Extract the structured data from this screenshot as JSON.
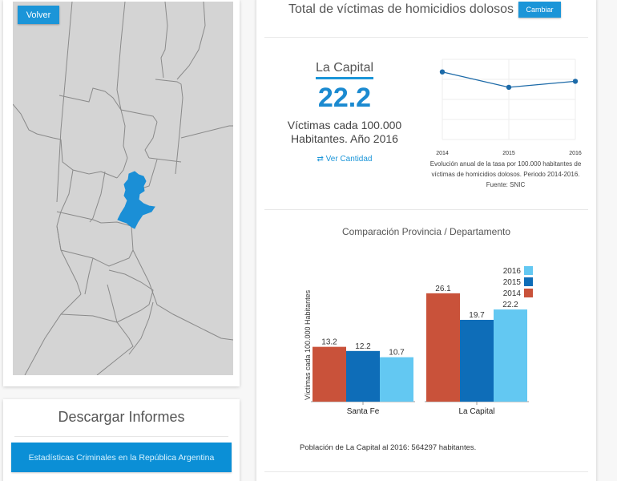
{
  "map": {
    "back_button": "Volver",
    "highlight_color": "#1b8fd6",
    "selected_department": "La Capital"
  },
  "downloads": {
    "title": "Descargar Informes",
    "items": [
      "Estadísticas Criminales en la República Argentina"
    ]
  },
  "header": {
    "title": "Total de víctimas de homicidios dolosos",
    "change_button": "Cambiar"
  },
  "summary": {
    "department": "La Capital",
    "value": "22.2",
    "caption_line1": "Víctimas cada 100.000",
    "caption_line2": "Habitantes. Año 2016",
    "toggle_link": "Ver Cantidad",
    "toggle_icon": "swap-arrows-icon"
  },
  "colors": {
    "accent": "#1b95d8",
    "y2014": "#c9523a",
    "y2015": "#0e6db8",
    "y2016": "#63c8f2",
    "line": "#1c6aa8"
  },
  "line_caption": "Evolución anual de la tasa por 100.000 habitantes de víctimas de homicidios dolosos. Periodo 2014-2016. Fuente: SNIC",
  "population_note": "Población de La Capital al 2016: 564297 habitantes.",
  "chart_data": [
    {
      "type": "line",
      "title": "",
      "x": [
        "2014",
        "2015",
        "2016"
      ],
      "series": [
        {
          "name": "La Capital",
          "values": [
            26.1,
            19.7,
            22.2
          ]
        }
      ],
      "xlabel": "",
      "ylabel": "",
      "ylim": [
        0,
        30
      ],
      "grid": true,
      "caption": "Evolución anual de la tasa por 100.000 habitantes de víctimas de homicidios dolosos. Periodo 2014-2016. Fuente: SNIC"
    },
    {
      "type": "bar",
      "title": "Comparación Provincia / Departamento",
      "categories": [
        "Santa Fe",
        "La Capital"
      ],
      "series": [
        {
          "name": "2014",
          "values": [
            13.2,
            26.1
          ]
        },
        {
          "name": "2015",
          "values": [
            12.2,
            19.7
          ]
        },
        {
          "name": "2016",
          "values": [
            10.7,
            22.2
          ]
        }
      ],
      "legend_order": [
        "2016",
        "2015",
        "2014"
      ],
      "legend_position": "top-right",
      "xlabel": "",
      "ylabel": "Víctimas cada 100.000 Habitantes",
      "ylim": [
        0,
        28
      ],
      "grid": false
    }
  ]
}
